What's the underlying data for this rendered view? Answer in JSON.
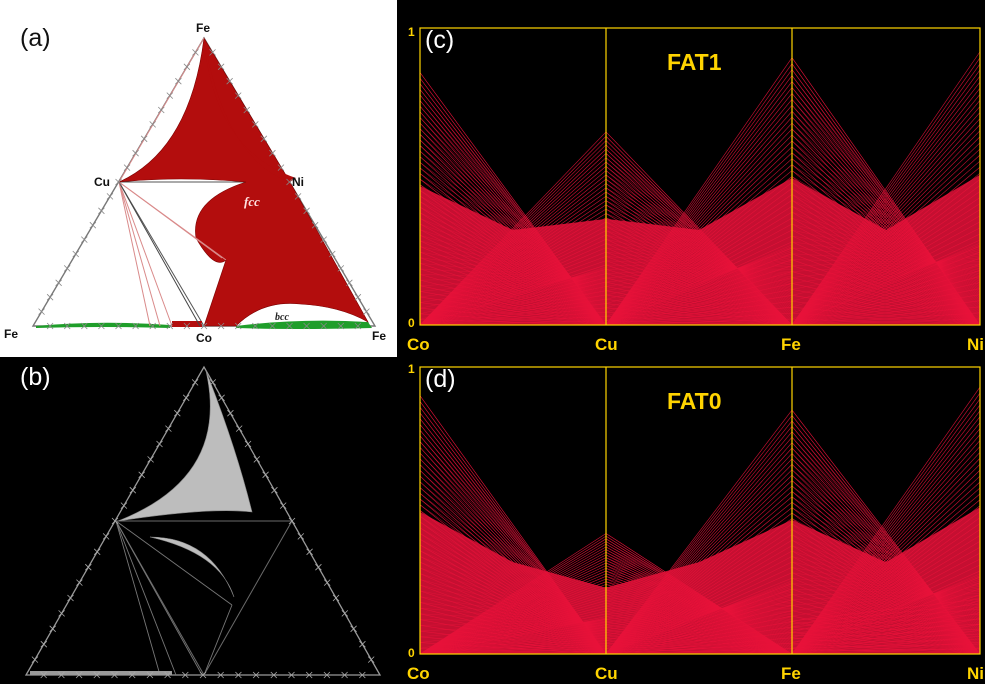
{
  "panels": {
    "a": {
      "label": "(a)",
      "vertices": {
        "top": "Fe",
        "left": "Fe",
        "bottom_mid": "Co",
        "right": "Fe",
        "left_mid": "Cu",
        "right_mid": "Ni"
      },
      "phase_labels": {
        "fcc": "fcc",
        "bcc": "bcc"
      }
    },
    "b": {
      "label": "(b)"
    },
    "c": {
      "label": "(c)",
      "title": "FAT1",
      "axes": [
        "Co",
        "Cu",
        "Fe",
        "Ni"
      ],
      "y_ticks": [
        "1",
        "0"
      ]
    },
    "d": {
      "label": "(d)",
      "title": "FAT0",
      "axes": [
        "Co",
        "Cu",
        "Fe",
        "Ni"
      ],
      "y_ticks": [
        "1",
        "0"
      ]
    }
  },
  "colors": {
    "fcc_region": "#b30d0d",
    "bcc_region": "#1f9e2a",
    "parallel_lines": "#e8123a",
    "axis_yellow": "#ffd400",
    "grey_region": "#bdbdbd"
  }
}
